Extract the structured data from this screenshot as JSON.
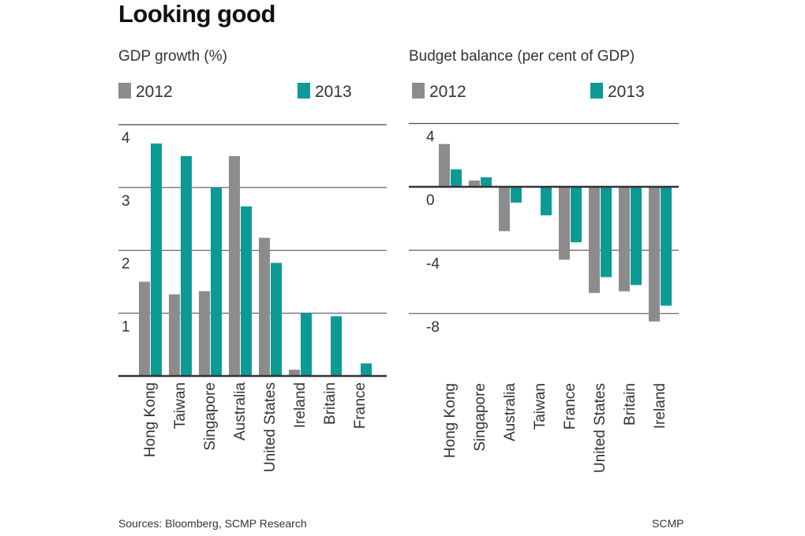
{
  "title": "Looking good",
  "footer": {
    "sources": "Sources: Bloomberg, SCMP Research",
    "credit": "SCMP"
  },
  "colors": {
    "series_2012": "#8c8c8c",
    "series_2013": "#0c9a95",
    "axis": "#333333",
    "grid": "#444444",
    "text": "#333333"
  },
  "chart_data": [
    {
      "type": "bar",
      "title": "GDP growth (%)",
      "categories": [
        "Hong Kong",
        "Taiwan",
        "Singapore",
        "Australia",
        "United States",
        "Ireland",
        "Britain",
        "France"
      ],
      "series": [
        {
          "name": "2012",
          "values": [
            1.5,
            1.3,
            1.35,
            3.5,
            2.2,
            0.1,
            0.0,
            0.0
          ]
        },
        {
          "name": "2013",
          "values": [
            3.7,
            3.5,
            3.0,
            2.7,
            1.8,
            1.0,
            0.95,
            0.2
          ]
        }
      ],
      "ylim": [
        0,
        4
      ],
      "yticks": [
        1,
        2,
        3,
        4
      ],
      "xlabel": "",
      "ylabel": ""
    },
    {
      "type": "bar",
      "title": "Budget balance (per cent of GDP)",
      "categories": [
        "Hong Kong",
        "Singapore",
        "Australia",
        "Taiwan",
        "France",
        "United States",
        "Britain",
        "Ireland"
      ],
      "series": [
        {
          "name": "2012",
          "values": [
            2.7,
            0.4,
            -2.8,
            0.0,
            -4.6,
            -6.7,
            -6.6,
            -8.5
          ]
        },
        {
          "name": "2013",
          "values": [
            1.1,
            0.6,
            -1.0,
            -1.8,
            -3.5,
            -5.7,
            -6.2,
            -7.5
          ]
        }
      ],
      "ylim": [
        -11.9,
        4
      ],
      "yticks": [
        4,
        0,
        -4,
        -8
      ],
      "xlabel": "",
      "ylabel": ""
    }
  ]
}
